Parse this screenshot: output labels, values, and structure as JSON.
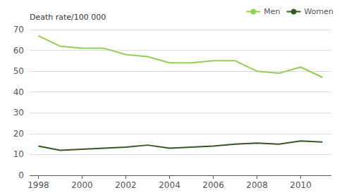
{
  "chart_data": {
    "type": "line",
    "ylabel": "Death rate/100 000",
    "x": [
      1998,
      1999,
      2000,
      2001,
      2002,
      2003,
      2004,
      2005,
      2006,
      2007,
      2008,
      2009,
      2010,
      2011
    ],
    "series": [
      {
        "name": "Men",
        "color": "#92d050",
        "values": [
          67,
          62,
          61,
          61,
          58,
          57,
          54,
          54,
          55,
          55,
          50,
          49,
          52,
          47
        ]
      },
      {
        "name": "Women",
        "color": "#375623",
        "values": [
          14,
          12,
          12.5,
          13,
          13.5,
          14.5,
          13,
          13.5,
          14,
          15,
          15.5,
          15,
          16.5,
          16
        ]
      }
    ],
    "xlim": [
      1997.6,
      2011.4
    ],
    "xticks": [
      1998,
      2000,
      2002,
      2004,
      2006,
      2008,
      2010
    ],
    "ylim": [
      0,
      70
    ],
    "yticks": [
      0,
      10,
      20,
      30,
      40,
      50,
      60,
      70
    ],
    "grid": true,
    "legend": "upper right"
  }
}
